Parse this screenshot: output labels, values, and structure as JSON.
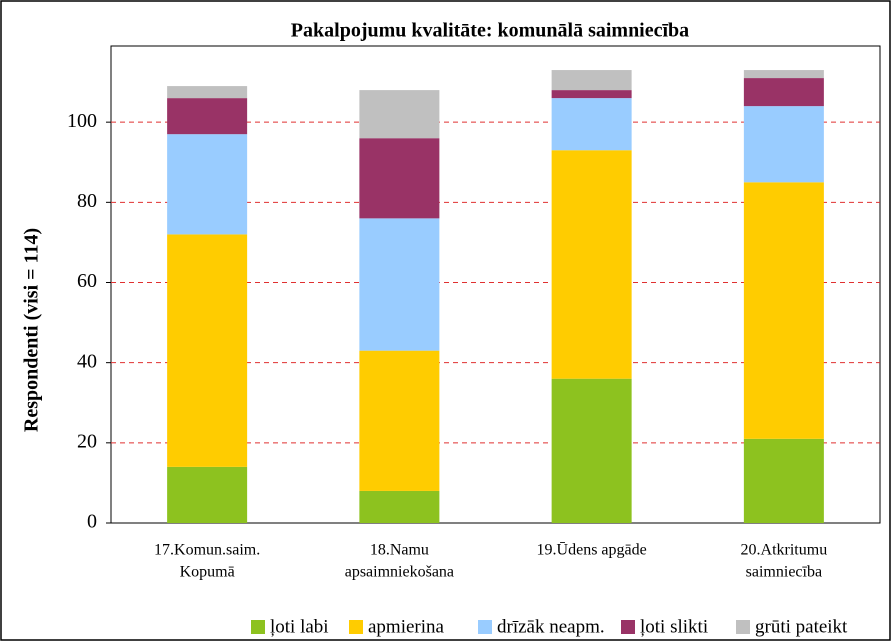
{
  "chart_data": {
    "type": "stacked_bar",
    "title": "Pakalpojumu kvalitāte: komunālā saimniecība",
    "y_label": "Respondenti (visi = 114)",
    "categories": [
      [
        "17.Komun.saim.",
        "Kopumā"
      ],
      [
        "18.Namu",
        "apsaimniekošana"
      ],
      [
        "19.Ūdens apgāde"
      ],
      [
        "20.Atkritumu",
        "saimniecība"
      ]
    ],
    "series": [
      {
        "name": "ļoti labi",
        "color": "#8dc21f",
        "values": [
          14,
          8,
          36,
          21
        ]
      },
      {
        "name": "apmierina",
        "color": "#ffcc00",
        "values": [
          58,
          35,
          57,
          64
        ]
      },
      {
        "name": "drīzāk neapm.",
        "color": "#99ccff",
        "values": [
          25,
          33,
          13,
          19
        ]
      },
      {
        "name": "ļoti slikti",
        "color": "#993366",
        "values": [
          9,
          20,
          2,
          7
        ]
      },
      {
        "name": "grūti pateikt",
        "color": "#c0c0c0",
        "values": [
          3,
          12,
          5,
          2
        ]
      }
    ],
    "ylim": [
      0,
      119
    ],
    "yticks": [
      0,
      20,
      40,
      60,
      80,
      100
    ],
    "grid": true
  }
}
